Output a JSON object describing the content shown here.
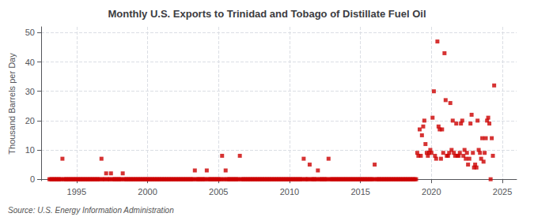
{
  "chart_data": {
    "type": "scatter",
    "title": "Monthly U.S. Exports to Trinidad and Tobago of Distillate Fuel Oil",
    "ylabel": "Thousand Barrels per Day",
    "annotations": [
      "Source: U.S. Energy Information Administration"
    ],
    "color": "#cc0000",
    "marker": "square",
    "grid": true,
    "xlim": [
      1992.5,
      2026.0
    ],
    "ylim": [
      -0.5,
      52
    ],
    "xticks": [
      1995,
      2000,
      2005,
      2010,
      2015,
      2020,
      2025
    ],
    "yticks": [
      0,
      10,
      20,
      30,
      40,
      50
    ],
    "x": [
      1993.08,
      1993.17,
      1993.25,
      1993.33,
      1993.42,
      1993.5,
      1993.58,
      1993.67,
      1993.75,
      1993.83,
      1993.92,
      1994.0,
      1994.08,
      1994.17,
      1994.25,
      1994.33,
      1994.42,
      1994.5,
      1994.58,
      1994.67,
      1994.75,
      1994.83,
      1994.92,
      1995.0,
      1995.08,
      1995.17,
      1995.25,
      1995.33,
      1995.42,
      1995.5,
      1995.58,
      1995.67,
      1995.75,
      1995.83,
      1995.92,
      1996.0,
      1996.08,
      1996.17,
      1996.25,
      1996.33,
      1996.42,
      1996.5,
      1996.58,
      1996.67,
      1996.75,
      1996.83,
      1996.92,
      1997.0,
      1997.08,
      1997.17,
      1997.25,
      1997.33,
      1997.42,
      1997.5,
      1997.58,
      1997.67,
      1997.75,
      1997.83,
      1997.92,
      1998.0,
      1998.08,
      1998.17,
      1998.25,
      1998.33,
      1998.42,
      1998.5,
      1998.58,
      1998.67,
      1998.75,
      1998.83,
      1998.92,
      1999.0,
      1999.08,
      1999.17,
      1999.25,
      1999.33,
      1999.42,
      1999.5,
      1999.58,
      1999.67,
      1999.75,
      1999.83,
      1999.92,
      2000.0,
      2000.08,
      2000.17,
      2000.25,
      2000.33,
      2000.42,
      2000.5,
      2000.58,
      2000.67,
      2000.75,
      2000.83,
      2000.92,
      2001.0,
      2001.08,
      2001.17,
      2001.25,
      2001.33,
      2001.42,
      2001.5,
      2001.58,
      2001.67,
      2001.75,
      2001.83,
      2001.92,
      2002.0,
      2002.08,
      2002.17,
      2002.25,
      2002.33,
      2002.42,
      2002.5,
      2002.58,
      2002.67,
      2002.75,
      2002.83,
      2002.92,
      2003.0,
      2003.08,
      2003.17,
      2003.25,
      2003.33,
      2003.42,
      2003.5,
      2003.58,
      2003.67,
      2003.75,
      2003.83,
      2003.92,
      2004.0,
      2004.08,
      2004.17,
      2004.25,
      2004.33,
      2004.42,
      2004.5,
      2004.58,
      2004.67,
      2004.75,
      2004.83,
      2004.92,
      2005.0,
      2005.08,
      2005.17,
      2005.25,
      2005.33,
      2005.42,
      2005.5,
      2005.58,
      2005.67,
      2005.75,
      2005.83,
      2005.92,
      2006.0,
      2006.08,
      2006.17,
      2006.25,
      2006.33,
      2006.42,
      2006.5,
      2006.58,
      2006.67,
      2006.75,
      2006.83,
      2006.92,
      2007.0,
      2007.08,
      2007.17,
      2007.25,
      2007.33,
      2007.42,
      2007.5,
      2007.58,
      2007.67,
      2007.75,
      2007.83,
      2007.92,
      2008.0,
      2008.08,
      2008.17,
      2008.25,
      2008.33,
      2008.42,
      2008.5,
      2008.58,
      2008.67,
      2008.75,
      2008.83,
      2008.92,
      2009.0,
      2009.08,
      2009.17,
      2009.25,
      2009.33,
      2009.42,
      2009.5,
      2009.58,
      2009.67,
      2009.75,
      2009.83,
      2009.92,
      2010.0,
      2010.08,
      2010.17,
      2010.25,
      2010.33,
      2010.42,
      2010.5,
      2010.58,
      2010.67,
      2010.75,
      2010.83,
      2010.92,
      2011.0,
      2011.08,
      2011.17,
      2011.25,
      2011.33,
      2011.42,
      2011.5,
      2011.58,
      2011.67,
      2011.75,
      2011.83,
      2011.92,
      2012.0,
      2012.08,
      2012.17,
      2012.25,
      2012.33,
      2012.42,
      2012.5,
      2012.58,
      2012.67,
      2012.75,
      2012.83,
      2012.92,
      2013.0,
      2013.08,
      2013.17,
      2013.25,
      2013.33,
      2013.42,
      2013.5,
      2013.58,
      2013.67,
      2013.75,
      2013.83,
      2013.92,
      2014.0,
      2014.08,
      2014.17,
      2014.25,
      2014.33,
      2014.42,
      2014.5,
      2014.58,
      2014.67,
      2014.75,
      2014.83,
      2014.92,
      2015.0,
      2015.08,
      2015.17,
      2015.25,
      2015.33,
      2015.42,
      2015.5,
      2015.58,
      2015.67,
      2015.75,
      2015.83,
      2015.92,
      2016.0,
      2016.08,
      2016.17,
      2016.25,
      2016.33,
      2016.42,
      2016.5,
      2016.58,
      2016.67,
      2016.75,
      2016.83,
      2016.92,
      2017.0,
      2017.08,
      2017.17,
      2017.25,
      2017.33,
      2017.42,
      2017.5,
      2017.58,
      2017.67,
      2017.75,
      2017.83,
      2017.92,
      2018.0,
      2018.08,
      2018.17,
      2018.25,
      2018.33,
      2018.42,
      2018.5,
      2018.58,
      2018.67,
      2018.75,
      2018.83,
      2018.92,
      2019.0,
      2019.08,
      2019.17,
      2019.25,
      2019.33,
      2019.42,
      2019.5,
      2019.58,
      2019.67,
      2019.75,
      2019.83,
      2019.92,
      2020.0,
      2020.08,
      2020.17,
      2020.25,
      2020.33,
      2020.42,
      2020.5,
      2020.58,
      2020.67,
      2020.75,
      2020.83,
      2020.92,
      2021.0,
      2021.08,
      2021.17,
      2021.25,
      2021.33,
      2021.42,
      2021.5,
      2021.58,
      2021.67,
      2021.75,
      2021.83,
      2021.92,
      2022.0,
      2022.08,
      2022.17,
      2022.25,
      2022.33,
      2022.42,
      2022.5,
      2022.58,
      2022.67,
      2022.75,
      2022.83,
      2022.92,
      2023.0,
      2023.08,
      2023.17,
      2023.25,
      2023.33,
      2023.42,
      2023.5,
      2023.58,
      2023.67,
      2023.75,
      2023.83,
      2023.92,
      2024.0,
      2024.08,
      2024.17,
      2024.25,
      2024.33,
      2024.42
    ],
    "values": [
      0,
      0,
      0,
      0,
      0,
      0,
      0,
      0,
      0,
      0,
      0,
      7,
      0,
      0,
      0,
      0,
      0,
      0,
      0,
      0,
      0,
      0,
      0,
      0,
      0,
      0,
      0,
      0,
      0,
      0,
      0,
      0,
      0,
      0,
      0,
      0,
      0,
      0,
      0,
      0,
      0,
      0,
      0,
      0,
      7,
      0,
      0,
      0,
      2,
      0,
      0,
      0,
      2,
      0,
      0,
      0,
      0,
      0,
      0,
      0,
      0,
      0,
      2,
      0,
      0,
      0,
      0,
      0,
      0,
      0,
      0,
      0,
      0,
      0,
      0,
      0,
      0,
      0,
      0,
      0,
      0,
      0,
      0,
      0,
      0,
      0,
      0,
      0,
      0,
      0,
      0,
      0,
      0,
      0,
      0,
      0,
      0,
      0,
      0,
      0,
      0,
      0,
      0,
      0,
      0,
      0,
      0,
      0,
      0,
      0,
      0,
      0,
      0,
      0,
      0,
      0,
      0,
      0,
      0,
      0,
      0,
      0,
      0,
      3,
      0,
      0,
      0,
      0,
      0,
      0,
      0,
      0,
      0,
      3,
      0,
      0,
      0,
      0,
      0,
      0,
      0,
      0,
      0,
      0,
      0,
      0,
      8,
      0,
      0,
      3,
      0,
      0,
      0,
      0,
      0,
      0,
      0,
      0,
      0,
      0,
      0,
      8,
      0,
      0,
      0,
      0,
      0,
      0,
      0,
      0,
      0,
      0,
      0,
      0,
      0,
      0,
      0,
      0,
      0,
      0,
      0,
      0,
      0,
      0,
      0,
      0,
      0,
      0,
      0,
      0,
      0,
      0,
      0,
      0,
      0,
      0,
      0,
      0,
      0,
      0,
      0,
      0,
      0,
      0,
      0,
      0,
      0,
      0,
      0,
      0,
      0,
      0,
      0,
      0,
      0,
      7,
      0,
      0,
      0,
      0,
      5,
      0,
      0,
      0,
      0,
      0,
      0,
      3,
      0,
      0,
      0,
      0,
      0,
      0,
      0,
      0,
      7,
      0,
      0,
      0,
      0,
      0,
      0,
      0,
      0,
      0,
      0,
      0,
      0,
      0,
      0,
      0,
      0,
      0,
      0,
      0,
      0,
      0,
      0,
      0,
      0,
      0,
      0,
      0,
      0,
      0,
      0,
      0,
      0,
      0,
      0,
      0,
      0,
      0,
      0,
      5,
      0,
      0,
      0,
      0,
      0,
      0,
      0,
      0,
      0,
      0,
      0,
      0,
      0,
      0,
      0,
      0,
      0,
      0,
      0,
      0,
      0,
      0,
      0,
      0,
      0,
      0,
      0,
      0,
      0,
      0,
      0,
      0,
      0,
      0,
      0,
      9,
      8,
      17,
      8,
      15,
      18,
      20,
      12,
      9,
      8,
      9,
      10,
      9,
      21,
      30,
      8,
      7,
      47,
      18,
      17,
      7,
      17,
      9,
      43,
      27,
      8,
      8,
      9,
      26,
      10,
      20,
      9,
      8,
      19,
      8,
      8,
      9,
      19,
      20,
      8,
      10,
      7,
      9,
      5,
      7,
      19,
      22,
      9,
      4,
      5,
      4,
      20,
      10,
      9,
      7,
      14,
      6,
      9,
      14,
      20,
      21,
      19,
      0,
      14,
      8,
      32
    ]
  }
}
